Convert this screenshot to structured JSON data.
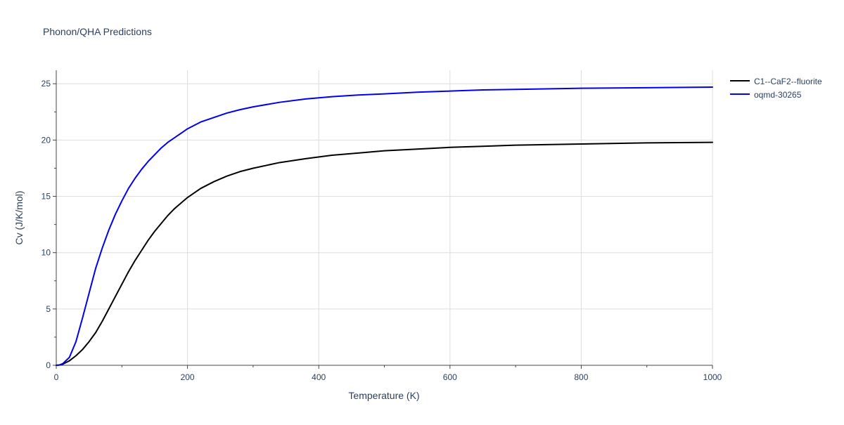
{
  "chart_data": {
    "type": "line",
    "title": "Phonon/QHA Predictions",
    "xlabel": "Temperature (K)",
    "ylabel": "Cv (J/K/mol)",
    "xlim": [
      0,
      1000
    ],
    "ylim": [
      0,
      26.2
    ],
    "x_ticks": [
      0,
      200,
      400,
      600,
      800,
      1000
    ],
    "x_tick_labels": [
      "0",
      "200",
      "400",
      "600",
      "800",
      "1000"
    ],
    "y_ticks": [
      0,
      5,
      10,
      15,
      20,
      25
    ],
    "y_tick_labels": [
      "0",
      "5",
      "10",
      "15",
      "20",
      "25"
    ],
    "grid": true,
    "legend_position": "top-right",
    "series": [
      {
        "name": "C1--CaF2--fluorite",
        "color": "#000000",
        "x": [
          0,
          5,
          10,
          20,
          30,
          40,
          50,
          60,
          70,
          80,
          90,
          100,
          110,
          120,
          130,
          140,
          150,
          160,
          170,
          180,
          190,
          200,
          220,
          240,
          260,
          280,
          300,
          340,
          380,
          420,
          460,
          500,
          550,
          600,
          650,
          700,
          800,
          900,
          1000
        ],
        "y": [
          0,
          0.02,
          0.1,
          0.4,
          0.85,
          1.4,
          2.1,
          2.9,
          3.9,
          5.0,
          6.1,
          7.2,
          8.3,
          9.3,
          10.2,
          11.1,
          11.9,
          12.6,
          13.3,
          13.9,
          14.4,
          14.9,
          15.7,
          16.3,
          16.8,
          17.2,
          17.5,
          18.0,
          18.35,
          18.65,
          18.85,
          19.05,
          19.2,
          19.35,
          19.45,
          19.55,
          19.65,
          19.75,
          19.8
        ]
      },
      {
        "name": "oqmd-30265",
        "color": "#0000ee",
        "x": [
          0,
          5,
          10,
          20,
          30,
          40,
          50,
          60,
          70,
          80,
          90,
          100,
          110,
          120,
          130,
          140,
          150,
          160,
          170,
          180,
          190,
          200,
          220,
          240,
          260,
          280,
          300,
          340,
          380,
          420,
          460,
          500,
          550,
          600,
          650,
          700,
          800,
          900,
          1000
        ],
        "y": [
          0,
          0.03,
          0.15,
          0.7,
          2.1,
          4.2,
          6.4,
          8.6,
          10.4,
          12.0,
          13.4,
          14.6,
          15.7,
          16.6,
          17.4,
          18.1,
          18.7,
          19.3,
          19.8,
          20.2,
          20.6,
          21.0,
          21.6,
          22.0,
          22.4,
          22.7,
          22.95,
          23.35,
          23.65,
          23.85,
          24.0,
          24.1,
          24.25,
          24.35,
          24.45,
          24.5,
          24.6,
          24.65,
          24.7
        ]
      }
    ]
  }
}
